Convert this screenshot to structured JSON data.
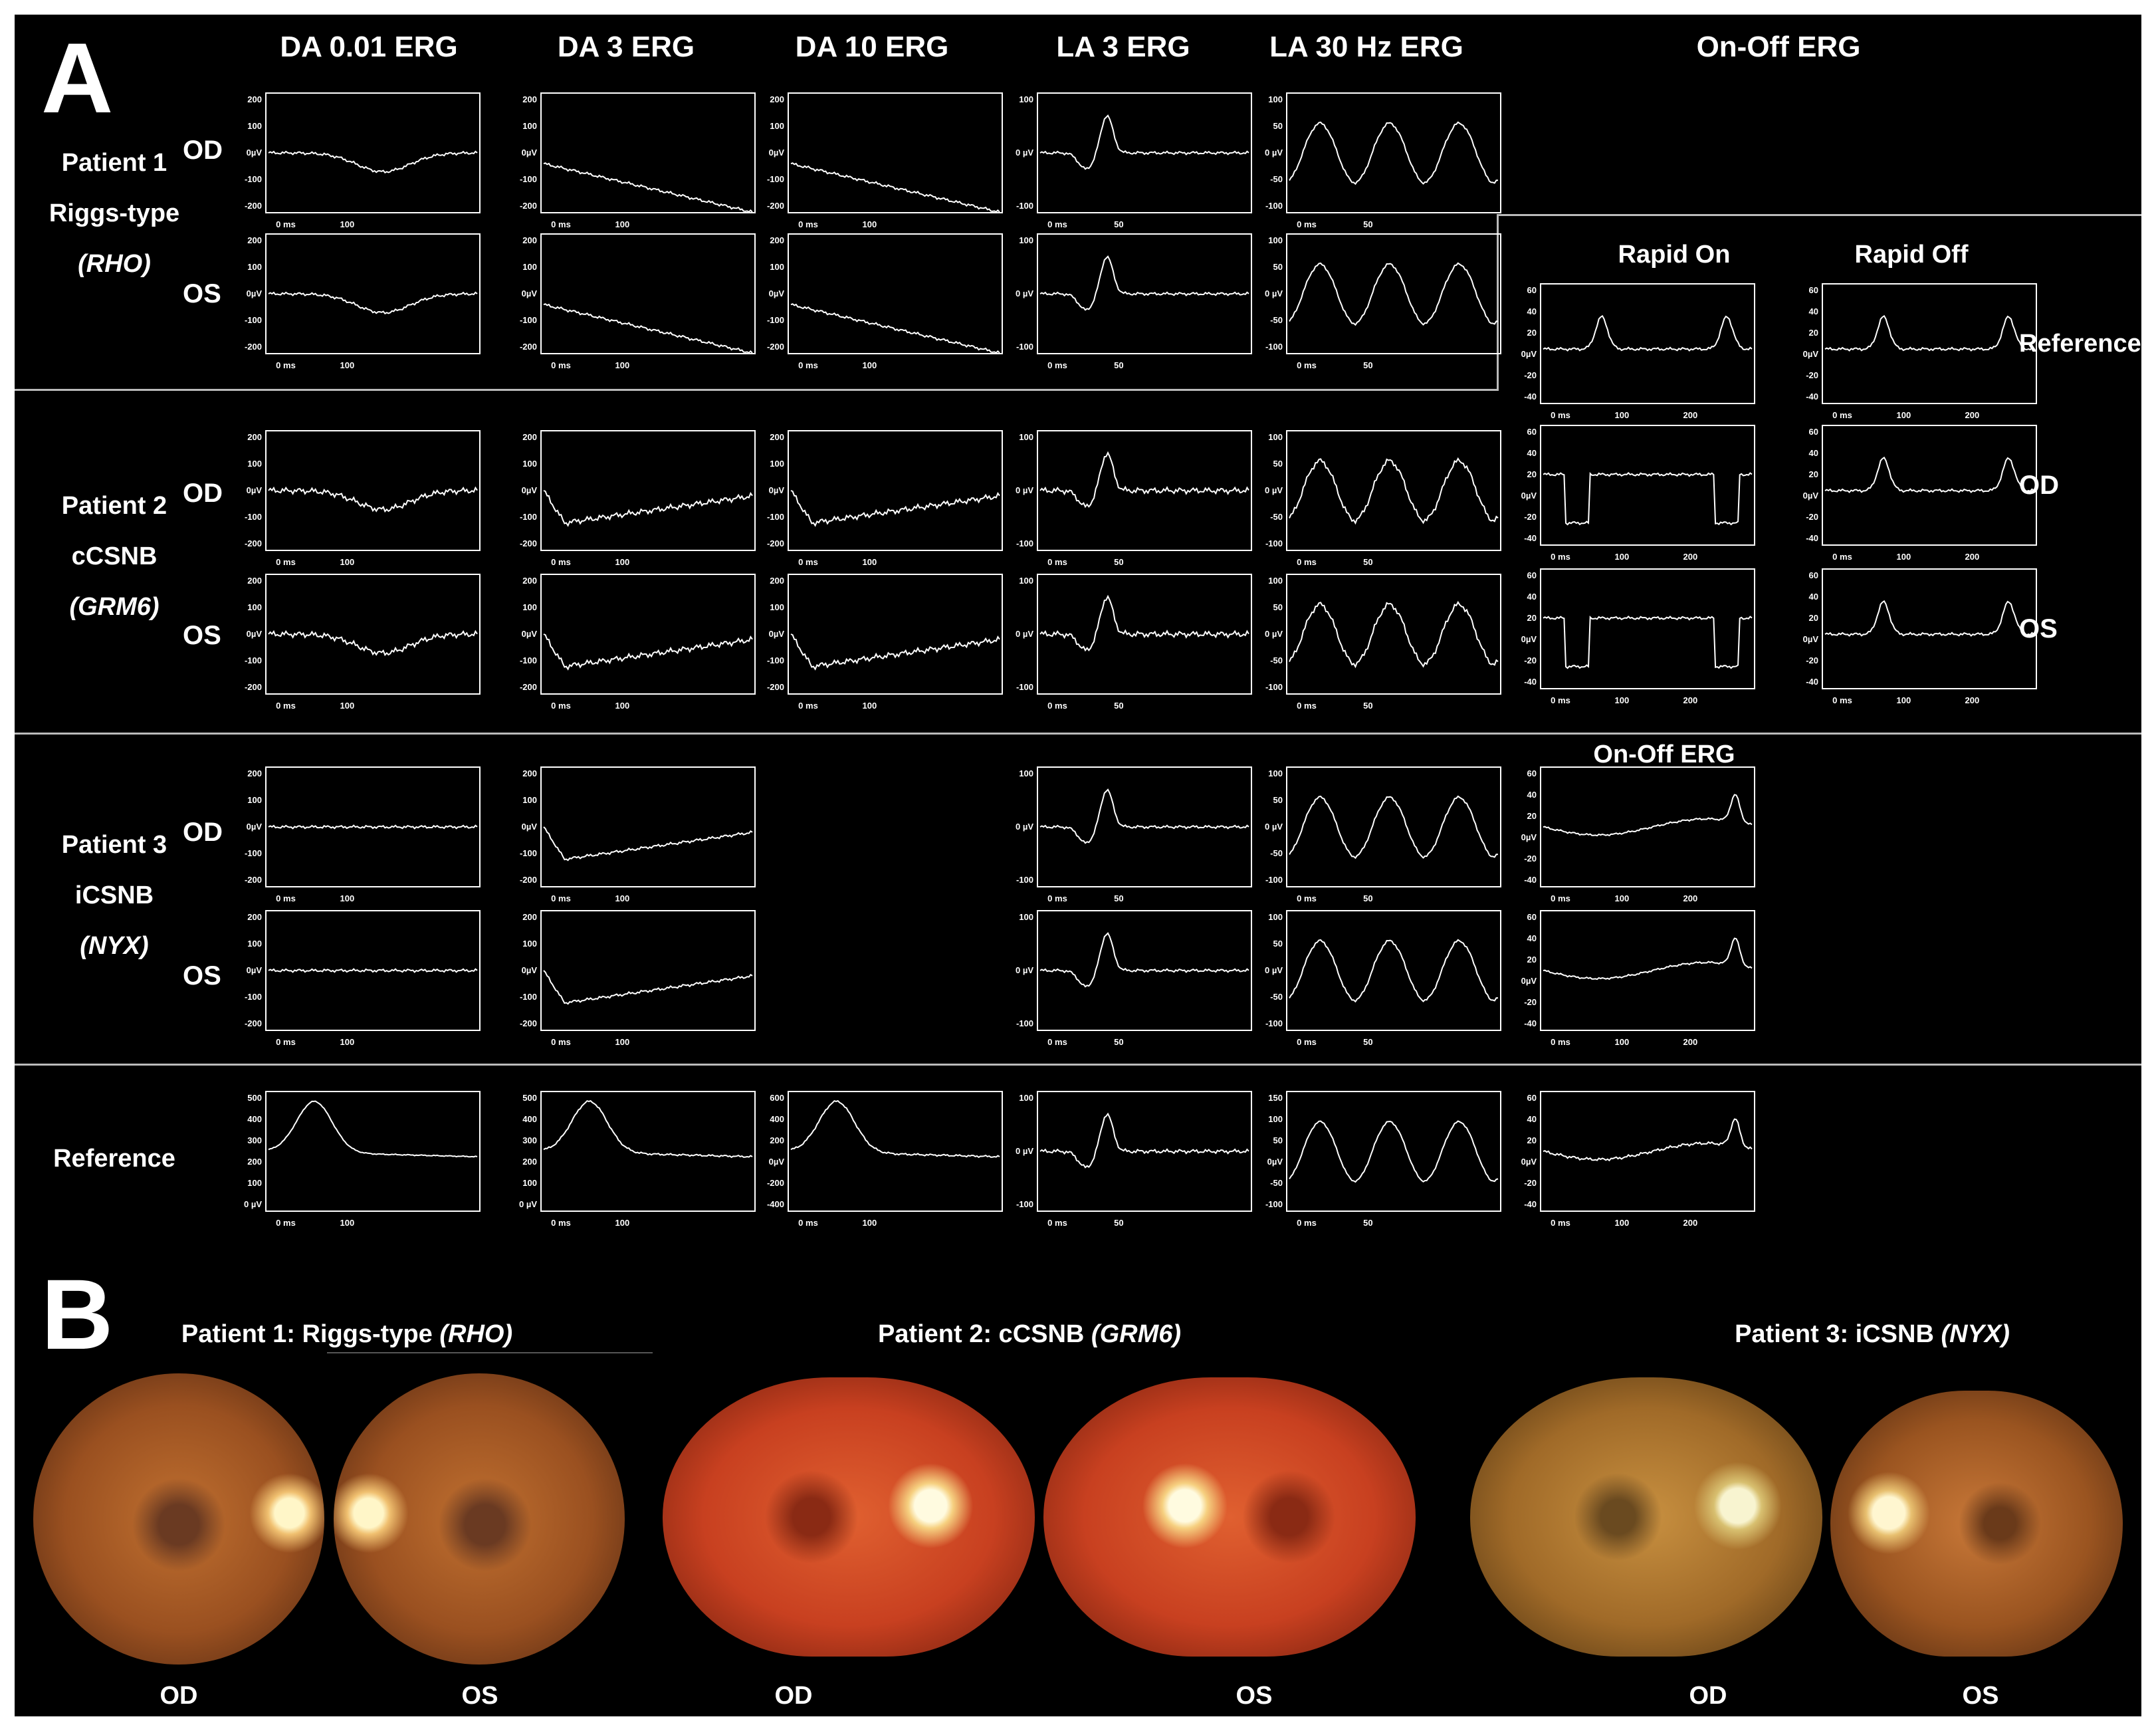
{
  "panel_a_label": "A",
  "panel_b_label": "B",
  "columns": [
    "DA 0.01 ERG",
    "DA 3 ERG",
    "DA 10 ERG",
    "LA 3 ERG",
    "LA 30 Hz ERG",
    "On-Off ERG"
  ],
  "on_off_sub": {
    "rapid_on": "Rapid On",
    "rapid_off": "Rapid Off",
    "on_off_erg": "On-Off ERG"
  },
  "patients": [
    {
      "name": "Patient 1",
      "type": "Riggs-type",
      "gene": "(RHO)"
    },
    {
      "name": "Patient 2",
      "type": "cCSNB",
      "gene": "(GRM6)"
    },
    {
      "name": "Patient 3",
      "type": "iCSNB",
      "gene": "(NYX)"
    }
  ],
  "reference_label": "Reference",
  "eye_labels": {
    "od": "OD",
    "os": "OS"
  },
  "axis_text": {
    "da_y": [
      "200",
      "100",
      "0µV",
      "-100",
      "-200"
    ],
    "ref_da001_y": [
      "500",
      "400",
      "300",
      "200",
      "100",
      "0 µV"
    ],
    "ref_da3_y": [
      "500",
      "400",
      "300",
      "200",
      "100",
      "0 µV"
    ],
    "ref_da10_y": [
      "600",
      "400",
      "200",
      "0µV",
      "-200",
      "-400"
    ],
    "la3_y": [
      "100",
      "0 µV",
      "-100"
    ],
    "hz30_y": [
      "100",
      "50",
      "0 µV",
      "-50",
      "-100"
    ],
    "ref_hz30_y": [
      "150",
      "100",
      "50",
      "0µV",
      "-50",
      "-100"
    ],
    "onoff_y": [
      "60",
      "40",
      "20",
      "0µV",
      "-20",
      "-40"
    ],
    "x_zero": "0 ms",
    "x_100": "100",
    "x_50": "50",
    "x_200": "200"
  },
  "panel_b": {
    "titles": [
      {
        "prefix": "Patient 1: Riggs-type ",
        "gene": "(RHO)"
      },
      {
        "prefix": "Patient 2: cCSNB ",
        "gene": "(GRM6)"
      },
      {
        "prefix": "Patient 3: iCSNB ",
        "gene": "(NYX)"
      }
    ],
    "eye_labels": [
      "OD",
      "OS",
      "OD",
      "OS",
      "OD",
      "OS"
    ]
  }
}
